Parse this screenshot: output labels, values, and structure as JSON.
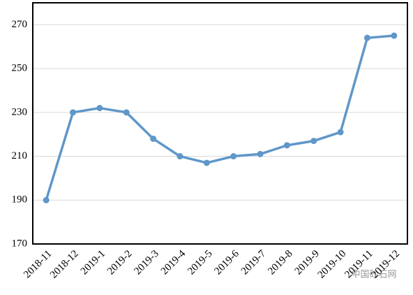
{
  "chart_data": {
    "type": "line",
    "categories": [
      "2018-11",
      "2018-12",
      "2019-1",
      "2019-2",
      "2019-3",
      "2019-4",
      "2019-5",
      "2019-6",
      "2019-7",
      "2019-8",
      "2019-9",
      "2019-10",
      "2019-11",
      "2019-12"
    ],
    "series": [
      {
        "color": "#5f97c9",
        "values": [
          190,
          230,
          232,
          230,
          218,
          210,
          207,
          210,
          211,
          215,
          217,
          221,
          264,
          265
        ]
      }
    ],
    "ylim": [
      170,
      280
    ],
    "yticks": [
      170,
      190,
      210,
      230,
      250,
      270
    ],
    "grid": true,
    "watermark": "中国砂石网"
  }
}
